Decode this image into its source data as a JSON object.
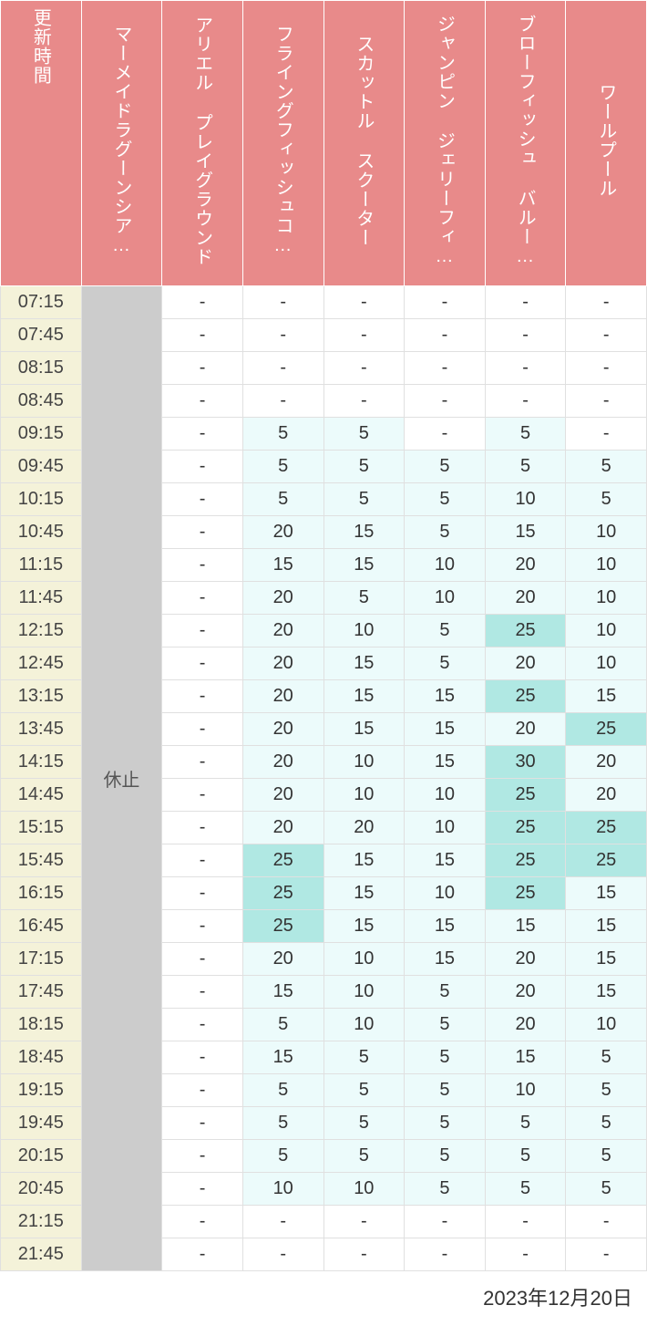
{
  "date_label": "2023年12月20日",
  "closed_label": "休止",
  "colors": {
    "header_bg": "#e88a8a",
    "header_fg": "#ffffff",
    "time_bg": "#f4f2d9",
    "closed_bg": "#cccccc",
    "blank_bg": "#ffffff",
    "tier1_bg": "#ecfbfb",
    "tier2_bg": "#b0e8e3",
    "thresholds": {
      "tier2_min": 25
    }
  },
  "columns": [
    {
      "key": "time",
      "label": "更新時間",
      "type": "time"
    },
    {
      "key": "lagoon",
      "label": "マーメイドラグーンシア…",
      "type": "closed"
    },
    {
      "key": "ariel",
      "label": "アリエル プレイグラウンド",
      "type": "data"
    },
    {
      "key": "flying",
      "label": "フライングフィッシュコ…",
      "type": "data"
    },
    {
      "key": "scuttle",
      "label": "スカットル スクーター",
      "type": "data"
    },
    {
      "key": "jumpin",
      "label": "ジャンピン ジェリーフィ…",
      "type": "data"
    },
    {
      "key": "blow",
      "label": "ブローフィッシュ バルー…",
      "type": "data"
    },
    {
      "key": "whirl",
      "label": "ワールプール",
      "type": "data"
    }
  ],
  "rows": [
    {
      "time": "07:15",
      "ariel": null,
      "flying": null,
      "scuttle": null,
      "jumpin": null,
      "blow": null,
      "whirl": null
    },
    {
      "time": "07:45",
      "ariel": null,
      "flying": null,
      "scuttle": null,
      "jumpin": null,
      "blow": null,
      "whirl": null
    },
    {
      "time": "08:15",
      "ariel": null,
      "flying": null,
      "scuttle": null,
      "jumpin": null,
      "blow": null,
      "whirl": null
    },
    {
      "time": "08:45",
      "ariel": null,
      "flying": null,
      "scuttle": null,
      "jumpin": null,
      "blow": null,
      "whirl": null
    },
    {
      "time": "09:15",
      "ariel": null,
      "flying": 5,
      "scuttle": 5,
      "jumpin": null,
      "blow": 5,
      "whirl": null
    },
    {
      "time": "09:45",
      "ariel": null,
      "flying": 5,
      "scuttle": 5,
      "jumpin": 5,
      "blow": 5,
      "whirl": 5
    },
    {
      "time": "10:15",
      "ariel": null,
      "flying": 5,
      "scuttle": 5,
      "jumpin": 5,
      "blow": 10,
      "whirl": 5
    },
    {
      "time": "10:45",
      "ariel": null,
      "flying": 20,
      "scuttle": 15,
      "jumpin": 5,
      "blow": 15,
      "whirl": 10
    },
    {
      "time": "11:15",
      "ariel": null,
      "flying": 15,
      "scuttle": 15,
      "jumpin": 10,
      "blow": 20,
      "whirl": 10
    },
    {
      "time": "11:45",
      "ariel": null,
      "flying": 20,
      "scuttle": 5,
      "jumpin": 10,
      "blow": 20,
      "whirl": 10
    },
    {
      "time": "12:15",
      "ariel": null,
      "flying": 20,
      "scuttle": 10,
      "jumpin": 5,
      "blow": 25,
      "whirl": 10
    },
    {
      "time": "12:45",
      "ariel": null,
      "flying": 20,
      "scuttle": 15,
      "jumpin": 5,
      "blow": 20,
      "whirl": 10
    },
    {
      "time": "13:15",
      "ariel": null,
      "flying": 20,
      "scuttle": 15,
      "jumpin": 15,
      "blow": 25,
      "whirl": 15
    },
    {
      "time": "13:45",
      "ariel": null,
      "flying": 20,
      "scuttle": 15,
      "jumpin": 15,
      "blow": 20,
      "whirl": 25
    },
    {
      "time": "14:15",
      "ariel": null,
      "flying": 20,
      "scuttle": 10,
      "jumpin": 15,
      "blow": 30,
      "whirl": 20
    },
    {
      "time": "14:45",
      "ariel": null,
      "flying": 20,
      "scuttle": 10,
      "jumpin": 10,
      "blow": 25,
      "whirl": 20
    },
    {
      "time": "15:15",
      "ariel": null,
      "flying": 20,
      "scuttle": 20,
      "jumpin": 10,
      "blow": 25,
      "whirl": 25
    },
    {
      "time": "15:45",
      "ariel": null,
      "flying": 25,
      "scuttle": 15,
      "jumpin": 15,
      "blow": 25,
      "whirl": 25
    },
    {
      "time": "16:15",
      "ariel": null,
      "flying": 25,
      "scuttle": 15,
      "jumpin": 10,
      "blow": 25,
      "whirl": 15
    },
    {
      "time": "16:45",
      "ariel": null,
      "flying": 25,
      "scuttle": 15,
      "jumpin": 15,
      "blow": 15,
      "whirl": 15
    },
    {
      "time": "17:15",
      "ariel": null,
      "flying": 20,
      "scuttle": 10,
      "jumpin": 15,
      "blow": 20,
      "whirl": 15
    },
    {
      "time": "17:45",
      "ariel": null,
      "flying": 15,
      "scuttle": 10,
      "jumpin": 5,
      "blow": 20,
      "whirl": 15
    },
    {
      "time": "18:15",
      "ariel": null,
      "flying": 5,
      "scuttle": 10,
      "jumpin": 5,
      "blow": 20,
      "whirl": 10
    },
    {
      "time": "18:45",
      "ariel": null,
      "flying": 15,
      "scuttle": 5,
      "jumpin": 5,
      "blow": 15,
      "whirl": 5
    },
    {
      "time": "19:15",
      "ariel": null,
      "flying": 5,
      "scuttle": 5,
      "jumpin": 5,
      "blow": 10,
      "whirl": 5
    },
    {
      "time": "19:45",
      "ariel": null,
      "flying": 5,
      "scuttle": 5,
      "jumpin": 5,
      "blow": 5,
      "whirl": 5
    },
    {
      "time": "20:15",
      "ariel": null,
      "flying": 5,
      "scuttle": 5,
      "jumpin": 5,
      "blow": 5,
      "whirl": 5
    },
    {
      "time": "20:45",
      "ariel": null,
      "flying": 10,
      "scuttle": 10,
      "jumpin": 5,
      "blow": 5,
      "whirl": 5
    },
    {
      "time": "21:15",
      "ariel": null,
      "flying": null,
      "scuttle": null,
      "jumpin": null,
      "blow": null,
      "whirl": null
    },
    {
      "time": "21:45",
      "ariel": null,
      "flying": null,
      "scuttle": null,
      "jumpin": null,
      "blow": null,
      "whirl": null
    }
  ]
}
